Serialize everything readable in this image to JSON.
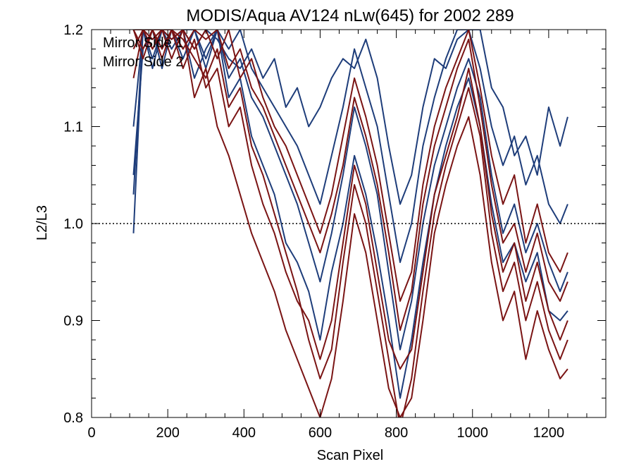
{
  "chart_data": {
    "type": "line",
    "title": "MODIS/Aqua AV124 nLw(645) for 2002 289",
    "xlabel": "Scan Pixel",
    "ylabel": "L2/L3",
    "xlim": [
      0,
      1350
    ],
    "ylim": [
      0.8,
      1.2
    ],
    "x_ticks": [
      0,
      200,
      400,
      600,
      800,
      1000,
      1200
    ],
    "y_ticks": [
      0.8,
      0.9,
      1.0,
      1.1,
      1.2
    ],
    "x_tick_labels": [
      "0",
      "200",
      "400",
      "600",
      "800",
      "1000",
      "1200"
    ],
    "y_tick_labels": [
      "0.8",
      "0.9",
      "1.0",
      "1.1",
      "1.2"
    ],
    "x_minor_step": 50,
    "y_minor_step": 0.02,
    "reference_line": {
      "y": 1.0,
      "style": "dotted"
    },
    "grid": false,
    "legend": {
      "position": "top-left"
    },
    "colors": {
      "mirror_side_1": "#1e3d7a",
      "mirror_side_2": "#7a1414"
    },
    "series": [
      {
        "name": "Mirror Side 1",
        "color": "#1e3d7a",
        "x": [
          110,
          135,
          160,
          185,
          210,
          240,
          270,
          300,
          330,
          360,
          390,
          420,
          450,
          480,
          510,
          540,
          570,
          600,
          630,
          660,
          690,
          720,
          750,
          780,
          810,
          840,
          870,
          900,
          930,
          960,
          990,
          1020,
          1050,
          1080,
          1110,
          1140,
          1170,
          1200,
          1230,
          1250
        ],
        "y": [
          1.03,
          1.2,
          1.17,
          1.2,
          1.19,
          1.2,
          1.18,
          1.2,
          1.19,
          1.17,
          1.16,
          1.18,
          1.15,
          1.17,
          1.12,
          1.14,
          1.1,
          1.12,
          1.15,
          1.17,
          1.16,
          1.19,
          1.15,
          1.08,
          1.02,
          1.05,
          1.12,
          1.17,
          1.16,
          1.19,
          1.2,
          1.2,
          1.14,
          1.12,
          1.07,
          1.09,
          1.05,
          1.12,
          1.08,
          1.11
        ]
      },
      {
        "name": "",
        "color": "#1e3d7a",
        "x": [
          110,
          135,
          160,
          185,
          210,
          240,
          270,
          300,
          330,
          360,
          390,
          420,
          450,
          480,
          510,
          540,
          570,
          600,
          630,
          660,
          690,
          720,
          750,
          780,
          810,
          840,
          870,
          900,
          930,
          960,
          990,
          1020,
          1050,
          1080,
          1110,
          1140,
          1170,
          1200,
          1230,
          1250
        ],
        "y": [
          1.05,
          1.18,
          1.2,
          1.16,
          1.2,
          1.17,
          1.2,
          1.16,
          1.2,
          1.15,
          1.17,
          1.13,
          1.11,
          1.08,
          1.05,
          1.02,
          0.98,
          0.94,
          0.99,
          1.05,
          1.12,
          1.08,
          1.03,
          0.95,
          0.87,
          0.92,
          1.0,
          1.06,
          1.1,
          1.14,
          1.17,
          1.13,
          1.05,
          0.99,
          1.02,
          0.97,
          1.0,
          0.96,
          0.93,
          0.95
        ]
      },
      {
        "name": "",
        "color": "#1e3d7a",
        "x": [
          110,
          135,
          160,
          185,
          210,
          240,
          270,
          300,
          330,
          360,
          390,
          420,
          450,
          480,
          510,
          540,
          570,
          600,
          630,
          660,
          690,
          720,
          750,
          780,
          810,
          840,
          870,
          900,
          930,
          960,
          990,
          1020,
          1050,
          1080,
          1110,
          1140,
          1170,
          1200,
          1230,
          1250
        ],
        "y": [
          0.99,
          1.2,
          1.19,
          1.2,
          1.18,
          1.2,
          1.15,
          1.18,
          1.2,
          1.13,
          1.15,
          1.09,
          1.06,
          1.03,
          0.98,
          0.96,
          0.93,
          0.88,
          0.95,
          1.0,
          1.07,
          1.03,
          0.97,
          0.9,
          0.82,
          0.88,
          0.96,
          1.03,
          1.08,
          1.12,
          1.15,
          1.1,
          1.02,
          0.96,
          0.98,
          0.94,
          0.97,
          0.91,
          0.9,
          0.91
        ]
      },
      {
        "name": "",
        "color": "#1e3d7a",
        "x": [
          110,
          135,
          160,
          185,
          210,
          240,
          270,
          300,
          330,
          360,
          390,
          420,
          450,
          480,
          510,
          540,
          570,
          600,
          630,
          660,
          690,
          720,
          750,
          780,
          810,
          840,
          870,
          900,
          930,
          960,
          990,
          1020,
          1050,
          1080,
          1110,
          1140,
          1170,
          1200,
          1230,
          1250
        ],
        "y": [
          1.1,
          1.2,
          1.16,
          1.2,
          1.19,
          1.2,
          1.2,
          1.17,
          1.2,
          1.18,
          1.2,
          1.16,
          1.14,
          1.12,
          1.1,
          1.08,
          1.05,
          1.02,
          1.07,
          1.12,
          1.18,
          1.14,
          1.1,
          1.03,
          0.96,
          1.0,
          1.08,
          1.13,
          1.17,
          1.2,
          1.2,
          1.16,
          1.1,
          1.06,
          1.09,
          1.04,
          1.07,
          1.02,
          1.0,
          1.02
        ]
      },
      {
        "name": "Mirror Side 2",
        "color": "#7a1414",
        "x": [
          110,
          135,
          160,
          185,
          210,
          240,
          270,
          300,
          330,
          360,
          390,
          420,
          450,
          480,
          510,
          540,
          570,
          600,
          630,
          660,
          690,
          720,
          750,
          780,
          810,
          840,
          870,
          900,
          930,
          960,
          990,
          1020,
          1050,
          1080,
          1110,
          1140,
          1170,
          1200,
          1230,
          1250
        ],
        "y": [
          1.2,
          1.17,
          1.2,
          1.18,
          1.2,
          1.19,
          1.17,
          1.15,
          1.18,
          1.12,
          1.14,
          1.08,
          1.05,
          1.01,
          0.97,
          0.93,
          0.88,
          0.84,
          0.87,
          0.96,
          1.04,
          1.0,
          0.93,
          0.86,
          0.79,
          0.84,
          0.93,
          1.01,
          1.06,
          1.1,
          1.14,
          1.09,
          0.99,
          0.93,
          0.96,
          0.9,
          0.94,
          0.89,
          0.86,
          0.88
        ]
      },
      {
        "name": "",
        "color": "#7a1414",
        "x": [
          110,
          135,
          160,
          185,
          210,
          240,
          270,
          300,
          330,
          360,
          390,
          420,
          450,
          480,
          510,
          540,
          570,
          600,
          630,
          660,
          690,
          720,
          750,
          780,
          810,
          840,
          870,
          900,
          930,
          960,
          990,
          1020,
          1050,
          1080,
          1110,
          1140,
          1170,
          1200,
          1230,
          1250
        ],
        "y": [
          1.15,
          1.2,
          1.19,
          1.2,
          1.17,
          1.2,
          1.13,
          1.16,
          1.1,
          1.07,
          1.03,
          0.99,
          0.96,
          0.93,
          0.89,
          0.86,
          0.83,
          0.8,
          0.84,
          0.92,
          1.01,
          0.97,
          0.9,
          0.83,
          0.8,
          0.82,
          0.9,
          0.99,
          1.04,
          1.08,
          1.11,
          1.05,
          0.96,
          0.9,
          0.93,
          0.86,
          0.91,
          0.87,
          0.84,
          0.85
        ]
      },
      {
        "name": "",
        "color": "#7a1414",
        "x": [
          110,
          135,
          160,
          185,
          210,
          240,
          270,
          300,
          330,
          360,
          390,
          420,
          450,
          480,
          510,
          540,
          570,
          600,
          630,
          660,
          690,
          720,
          750,
          780,
          810,
          840,
          870,
          900,
          930,
          960,
          990,
          1020,
          1050,
          1080,
          1110,
          1140,
          1170,
          1200,
          1230,
          1250
        ],
        "y": [
          1.2,
          1.18,
          1.2,
          1.2,
          1.19,
          1.2,
          1.18,
          1.2,
          1.17,
          1.2,
          1.15,
          1.17,
          1.13,
          1.1,
          1.08,
          1.05,
          1.02,
          0.99,
          1.03,
          1.09,
          1.15,
          1.11,
          1.06,
          0.99,
          0.92,
          0.95,
          1.04,
          1.1,
          1.14,
          1.17,
          1.2,
          1.14,
          1.07,
          1.02,
          1.05,
          0.98,
          1.02,
          0.97,
          0.95,
          0.97
        ]
      },
      {
        "name": "",
        "color": "#7a1414",
        "x": [
          110,
          135,
          160,
          185,
          210,
          240,
          270,
          300,
          330,
          360,
          390,
          420,
          450,
          480,
          510,
          540,
          570,
          600,
          630,
          660,
          690,
          720,
          750,
          780,
          810,
          840,
          870,
          900,
          930,
          960,
          990,
          1020,
          1050,
          1080,
          1110,
          1140,
          1170,
          1200,
          1230,
          1250
        ],
        "y": [
          1.18,
          1.2,
          1.2,
          1.17,
          1.2,
          1.16,
          1.19,
          1.14,
          1.16,
          1.1,
          1.12,
          1.06,
          1.02,
          0.99,
          0.95,
          0.92,
          0.9,
          0.86,
          0.9,
          0.98,
          1.06,
          1.02,
          0.95,
          0.88,
          0.85,
          0.87,
          0.95,
          1.03,
          1.07,
          1.11,
          1.16,
          1.1,
          1.01,
          0.95,
          0.98,
          0.92,
          0.96,
          0.91,
          0.88,
          0.9
        ]
      },
      {
        "name": "",
        "color": "#7a1414",
        "x": [
          110,
          135,
          160,
          185,
          210,
          240,
          270,
          300,
          330,
          360,
          390,
          420,
          450,
          480,
          510,
          540,
          570,
          600,
          630,
          660,
          690,
          720,
          750,
          780,
          810,
          840,
          870,
          900,
          930,
          960,
          990,
          1020,
          1050,
          1080,
          1110,
          1140,
          1170,
          1200,
          1230,
          1250
        ],
        "y": [
          1.2,
          1.2,
          1.18,
          1.2,
          1.2,
          1.18,
          1.2,
          1.19,
          1.2,
          1.16,
          1.18,
          1.14,
          1.12,
          1.09,
          1.06,
          1.03,
          1.0,
          0.97,
          1.01,
          1.06,
          1.13,
          1.09,
          1.04,
          0.97,
          0.89,
          0.93,
          1.02,
          1.08,
          1.12,
          1.16,
          1.19,
          1.12,
          1.04,
          0.98,
          1.0,
          0.95,
          0.99,
          0.94,
          0.92,
          0.94
        ]
      }
    ]
  }
}
